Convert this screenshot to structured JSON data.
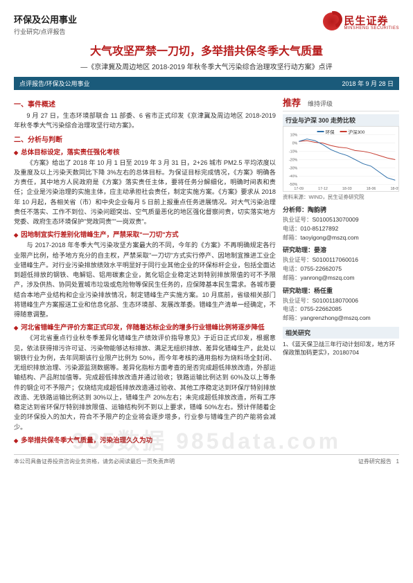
{
  "header": {
    "sector": "环保及公用事业",
    "subsector": "行业研究/点评报告",
    "logo_cn": "民生证券",
    "logo_en": "MINSHENG SECURITIES"
  },
  "title": "大气攻坚严禁一刀切，多举措共保冬季大气质量",
  "subtitle": "—《京津冀及周边地区 2018-2019 年秋冬季大气污染综合治理攻坚行动方案》点评",
  "bluebar_left": "点评报告/环保及公用事业",
  "bluebar_right": "2018 年 9 月 28 日",
  "sections": {
    "s1_title": "一、事件概述",
    "s1_p1": "9 月 27 日，生态环境部联合 11 部委、6 省市正式印发《京津冀及周边地区 2018-2019 年秋冬季大气污染综合治理攻坚行动方案》。",
    "s2_title": "二、分析与判断",
    "b1_title": "总体目标设定，落实责任强化考核",
    "b1_p1": "《方案》给出了 2018 年 10 月 1 日至 2019 年 3 月 31 日，2+26 城市 PM2.5 平均浓度以及重度及以上污染天数同比下降 3%左右的总体目标。为保证目标完成情况，《方案》明确各方责任，其中地方人民政府是《方案》落实责任主体，要将任务分解细化，明确时间表和责任；企业是污染治理的实施主体，应主动承担社会责任，制定实施方案。《方案》要求从 2018 年 10 月起，各相关省（市）和中央企业每月 5 日前上报重点任务进展情况。对大气污染治理责任不落实、工作不到位、污染问题突出、空气质量恶化的地区强化督察问责，切实落实地方党委、政府生态环境保护\"党政同责\"\"一岗双责\"。",
    "b2_title": "因地制宜实行差别化错峰生产，严禁采取\"一刀切\"方式",
    "b2_p1": "与 2017-2018 年冬季大气污染攻坚方案最大的不同，今年的《方案》不再明确规定各行业限产比例，给予地方充分的自主权，严禁采取\"一刀切\"方式实行停产、因地制宜推进工业企业错峰生产。对行业污染排放绩效水平明显好于同行业其他企业的环保标杆企业，包括全面达到超低排放的钢铁、电解铝、铝用碳素企业，氮化铝企业稳定达到特别排放限值的可不予限产，涉及供热、协同处置城市垃圾或危险物等保民生任务的，应保障基本民生需求。各城市要结合本地产业结构和企业污染排放情况，制定错峰生产实施方案。10 月底前，省级相关部门将错峰生产方案报送工业和信息化部、生态环境部、发展改革委。错峰生产清单一经确定，不得随意调整。",
    "b3_title": "河北省错峰生产评价方案正式印发，伴随着达标企业的增多行业错峰比例将逐步降低",
    "b3_p1": "《河北省重点行业秋冬季差异化错峰生产绩效评价指导意见》于近日正式印发，根据意见，依法获得排污许可证、污染物能够达标排放、满足无组织排放、差异化错峰生产，此处以钢铁行业为例，去年同期该行业限产比例为 50%，而今年考核的通用指标为烧料场全封闭、无组织排放治理、污染源监测数据等。差异化指标方面考查的是否完成超低排放改造，外部运输结构、产品附加值等。完成超低排放改造并通过验收；铁路运输比例达到 60%及以上等条件的钢企可不予限产；仅烧结完成超低排放改造通过验收、其他工序稳定达到环保厅特别排放改造、无铁路运输比例达到 30%以上，错峰生产 20%左右；未完成超低排放改造，所有工序稳定达到省环保厅特别排放限值、运输结构列不到以上要求，错峰 50%左右。预计伴随着企业的环保投入的加大，符合不予限产的企业将会逐步增多，行业参与错峰生产的产能将会减少。",
    "b4_title": "多举措共保冬季大气质量，污染治理久久为功"
  },
  "sidebar": {
    "rec_main": "推荐",
    "rec_sub": "维持评级",
    "chart_title": "行业与沪深 300 走势比较",
    "chart": {
      "legend": [
        "环保",
        "沪深300"
      ],
      "colors": [
        "#2b6da8",
        "#c63a2e"
      ],
      "x_labels": [
        "17-09",
        "17-12",
        "18-03",
        "18-06",
        "18-09"
      ],
      "y_ticks": [
        "10%",
        "0%",
        "-10%",
        "-20%",
        "-30%",
        "-40%",
        "-50%"
      ],
      "series_env": [
        2,
        5,
        3,
        -2,
        -8,
        -12,
        -15,
        -20,
        -25,
        -28,
        -35,
        -42,
        -45
      ],
      "series_hs": [
        2,
        3,
        1,
        0,
        -3,
        -5,
        -6,
        -9,
        -10,
        -12,
        -15,
        -18,
        -20
      ],
      "background_color": "#ffffff",
      "grid_color": "#e8e8e8"
    },
    "chart_src": "资料来源：WIND，民生证券研究院",
    "analyst_label": "分析师：陶韵骋",
    "asst1_label": "研究助理：晏溶",
    "asst2_label": "研究助理：杨任重",
    "analyst": {
      "cert": "S0100513070009",
      "tel": "010-85127892",
      "email": "taoyigong@mszq.com"
    },
    "asst1": {
      "cert": "S0100117060016",
      "tel": "0755-22662075",
      "email": "yanrong@mszq.com"
    },
    "asst2": {
      "cert": "S0100118070006",
      "tel": "0755-22662085",
      "email": "yangrenzhong@mszq.com"
    },
    "cert_lbl": "执业证号：",
    "tel_lbl": "电话：",
    "email_lbl": "邮箱：",
    "related_title": "相关研究",
    "related_1": "1、《蓝天保卫战三年行动计划印发，地方环保政策加码更实》，20180704"
  },
  "footer_left": "本公司具备证券投资咨询业务资格，请务必阅读最后一页免责声明",
  "footer_right": "证券研究报告",
  "footer_page": "1",
  "watermark": "985数据  985data.com"
}
